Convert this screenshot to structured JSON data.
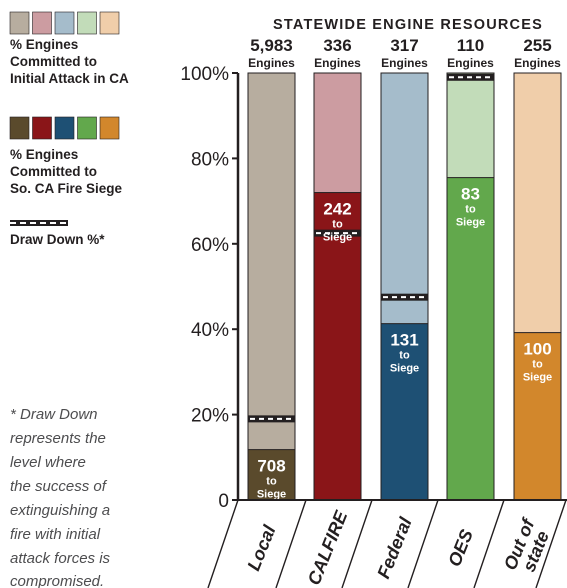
{
  "legend": {
    "initial_attack_label": [
      "% Engines",
      "Committed to",
      "Initial Attack in CA"
    ],
    "siege_label": [
      "% Engines",
      "Committed to",
      "So. CA Fire Siege"
    ],
    "drawdown_label": "Draw Down %*",
    "light_colors": [
      "#b7ad9f",
      "#cc9ca1",
      "#a5bccb",
      "#c2dcb9",
      "#f0ceaa"
    ],
    "dark_colors": [
      "#5a4a2c",
      "#8a1518",
      "#1e5074",
      "#62a84c",
      "#d2872c"
    ]
  },
  "note": [
    "* Draw Down",
    "represents the",
    "level where",
    "the success of",
    "extinguishing a",
    "fire with initial",
    "attack forces is",
    "compromised."
  ],
  "chart_data": {
    "type": "bar",
    "title": "STATEWIDE ENGINE RESOURCES",
    "categories": [
      "Local",
      "CALFIRE",
      "Federal",
      "OES",
      "Out of state"
    ],
    "category_labels": [
      [
        "Local"
      ],
      [
        "CALFIRE"
      ],
      [
        "Federal"
      ],
      [
        "OES"
      ],
      [
        "Out of",
        "state"
      ]
    ],
    "engines_total": [
      "5,983",
      "336",
      "317",
      "110",
      "255"
    ],
    "engines_unit": "Engines",
    "series": [
      {
        "name": "% Engines Committed to Initial Attack in CA",
        "values": [
          100,
          100,
          100,
          100,
          100
        ]
      },
      {
        "name": "% Engines Committed to So. CA Fire Siege",
        "values": [
          11.8,
          72.0,
          41.3,
          75.5,
          39.2
        ]
      },
      {
        "name": "Draw Down %*",
        "values": [
          19,
          62.5,
          47.5,
          99,
          null
        ]
      }
    ],
    "siege_counts": [
      "708",
      "242",
      "131",
      "83",
      "100"
    ],
    "siege_word": "to",
    "siege_target": "Siege",
    "y_ticks": [
      "0",
      "20%",
      "40%",
      "60%",
      "80%",
      "100%"
    ],
    "ylim": [
      0,
      100
    ],
    "light_colors": [
      "#b7ad9f",
      "#cc9ca1",
      "#a5bccb",
      "#c2dcb9",
      "#f0ceaa"
    ],
    "dark_colors": [
      "#5a4a2c",
      "#8a1518",
      "#1e5074",
      "#62a84c",
      "#d2872c"
    ]
  }
}
